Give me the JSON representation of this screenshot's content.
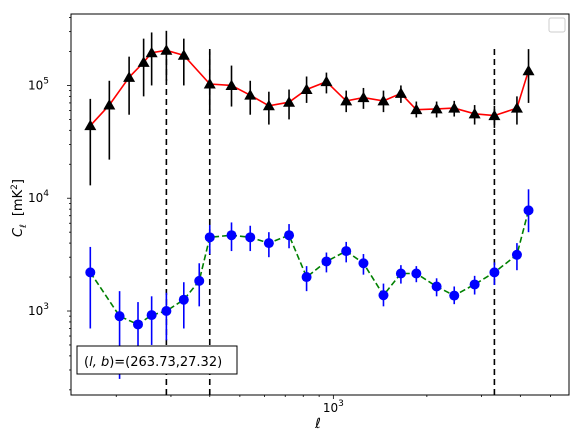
{
  "chart_data": {
    "type": "scatter",
    "xscale": "log",
    "yscale": "log",
    "xlabel": "ℓ",
    "ylabel_main": "C",
    "ylabel_sub": "ℓ",
    "ylabel_unit": "[mK",
    "ylabel_unit_sup": "2",
    "ylabel_unit_close": "]",
    "xlim": [
      143,
      5737
    ],
    "ylim": [
      180,
      430000
    ],
    "xticks": [
      {
        "value": 1000,
        "base": "10",
        "exp": "3"
      }
    ],
    "yticks": [
      {
        "value": 1000,
        "base": "10",
        "exp": "3"
      },
      {
        "value": 10000,
        "base": "10",
        "exp": "4"
      },
      {
        "value": 100000,
        "base": "10",
        "exp": "5"
      }
    ],
    "legend": {
      "placement": "upper right",
      "entries": []
    },
    "annotation": {
      "prefix": "(",
      "vars": "l, b",
      "suffix": ")=(263.73,27.32)"
    },
    "vlines": [
      290,
      400,
      3300
    ],
    "series": [
      {
        "color": "#ff0000",
        "marker": "triangle",
        "marker_color": "#000000",
        "linestyle": "solid",
        "errcolor": "#000000",
        "points": [
          {
            "x": 165,
            "y": 44000,
            "lo": 13000,
            "hi": 76000
          },
          {
            "x": 190,
            "y": 67000,
            "lo": 22000,
            "hi": 110000
          },
          {
            "x": 220,
            "y": 118000,
            "lo": 55000,
            "hi": 180000
          },
          {
            "x": 245,
            "y": 160000,
            "lo": 80000,
            "hi": 260000
          },
          {
            "x": 260,
            "y": 195000,
            "lo": 100000,
            "hi": 295000
          },
          {
            "x": 290,
            "y": 205000,
            "lo": 110000,
            "hi": 305000
          },
          {
            "x": 330,
            "y": 185000,
            "lo": 100000,
            "hi": 260000
          },
          {
            "x": 400,
            "y": 103000,
            "lo": 55000,
            "hi": 200000
          },
          {
            "x": 470,
            "y": 100000,
            "lo": 65000,
            "hi": 150000
          },
          {
            "x": 540,
            "y": 82000,
            "lo": 55000,
            "hi": 110000
          },
          {
            "x": 620,
            "y": 66000,
            "lo": 45000,
            "hi": 88000
          },
          {
            "x": 720,
            "y": 71000,
            "lo": 50000,
            "hi": 92000
          },
          {
            "x": 820,
            "y": 92000,
            "lo": 70000,
            "hi": 120000
          },
          {
            "x": 950,
            "y": 108000,
            "lo": 85000,
            "hi": 130000
          },
          {
            "x": 1100,
            "y": 73000,
            "lo": 58000,
            "hi": 90000
          },
          {
            "x": 1250,
            "y": 78000,
            "lo": 62000,
            "hi": 95000
          },
          {
            "x": 1450,
            "y": 73000,
            "lo": 58000,
            "hi": 90000
          },
          {
            "x": 1650,
            "y": 85000,
            "lo": 70000,
            "hi": 100000
          },
          {
            "x": 1850,
            "y": 61000,
            "lo": 52000,
            "hi": 72000
          },
          {
            "x": 2150,
            "y": 62000,
            "lo": 52000,
            "hi": 72000
          },
          {
            "x": 2450,
            "y": 63000,
            "lo": 53000,
            "hi": 73000
          },
          {
            "x": 2850,
            "y": 56000,
            "lo": 45000,
            "hi": 67000
          },
          {
            "x": 3300,
            "y": 54000,
            "lo": 42000,
            "hi": 66000
          },
          {
            "x": 3900,
            "y": 63000,
            "lo": 45000,
            "hi": 80000
          },
          {
            "x": 4250,
            "y": 135000,
            "lo": 70000,
            "hi": 210000
          }
        ]
      },
      {
        "color": "#008000",
        "marker": "circle",
        "marker_color": "#0000ff",
        "linestyle": "dashed",
        "errcolor": "#0000ff",
        "points": [
          {
            "x": 165,
            "y": 2200,
            "lo": 700,
            "hi": 3700
          },
          {
            "x": 205,
            "y": 900,
            "lo": 250,
            "hi": 1500
          },
          {
            "x": 235,
            "y": 760,
            "lo": 300,
            "hi": 1200
          },
          {
            "x": 260,
            "y": 920,
            "lo": 500,
            "hi": 1350
          },
          {
            "x": 290,
            "y": 1000,
            "lo": 550,
            "hi": 1450
          },
          {
            "x": 330,
            "y": 1260,
            "lo": 700,
            "hi": 1800
          },
          {
            "x": 370,
            "y": 1850,
            "lo": 1100,
            "hi": 2650
          },
          {
            "x": 400,
            "y": 4500,
            "lo": 3200,
            "hi": 5800
          },
          {
            "x": 470,
            "y": 4700,
            "lo": 3400,
            "hi": 6100
          },
          {
            "x": 540,
            "y": 4500,
            "lo": 3400,
            "hi": 5700
          },
          {
            "x": 620,
            "y": 4000,
            "lo": 3000,
            "hi": 5000
          },
          {
            "x": 720,
            "y": 4700,
            "lo": 3600,
            "hi": 5900
          },
          {
            "x": 820,
            "y": 2000,
            "lo": 1500,
            "hi": 2500
          },
          {
            "x": 950,
            "y": 2750,
            "lo": 2200,
            "hi": 3300
          },
          {
            "x": 1100,
            "y": 3400,
            "lo": 2700,
            "hi": 4100
          },
          {
            "x": 1250,
            "y": 2650,
            "lo": 2100,
            "hi": 3200
          },
          {
            "x": 1450,
            "y": 1380,
            "lo": 1100,
            "hi": 1750
          },
          {
            "x": 1650,
            "y": 2150,
            "lo": 1750,
            "hi": 2550
          },
          {
            "x": 1850,
            "y": 2150,
            "lo": 1800,
            "hi": 2500
          },
          {
            "x": 2150,
            "y": 1650,
            "lo": 1350,
            "hi": 1950
          },
          {
            "x": 2450,
            "y": 1370,
            "lo": 1150,
            "hi": 1650
          },
          {
            "x": 2850,
            "y": 1720,
            "lo": 1400,
            "hi": 2050
          },
          {
            "x": 3300,
            "y": 2200,
            "lo": 1700,
            "hi": 2700
          },
          {
            "x": 3900,
            "y": 3150,
            "lo": 2300,
            "hi": 4000
          },
          {
            "x": 4250,
            "y": 7800,
            "lo": 5000,
            "hi": 12000
          }
        ]
      }
    ]
  }
}
